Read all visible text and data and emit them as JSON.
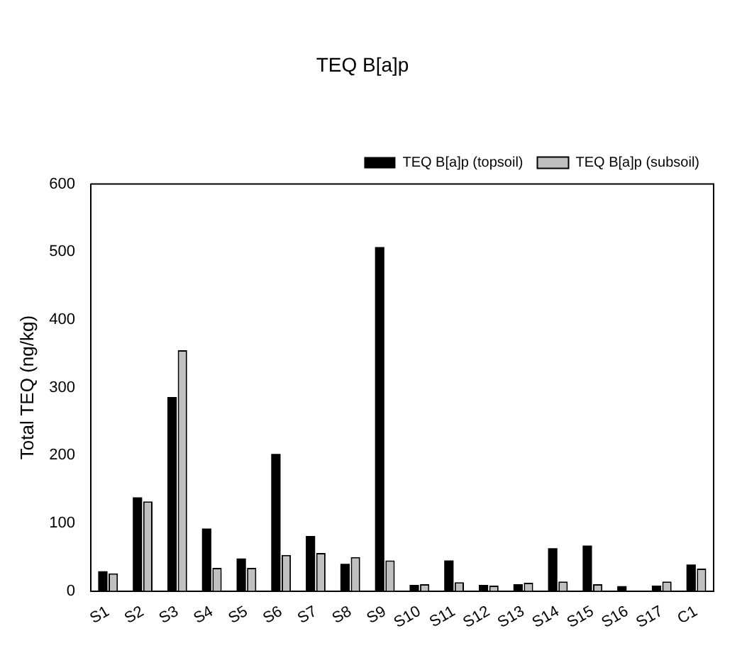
{
  "chart_data": {
    "type": "bar",
    "title": "TEQ B[a]p",
    "ylabel": "Total TEQ (ng/kg)",
    "categories": [
      "S1",
      "S2",
      "S3",
      "S4",
      "S5",
      "S6",
      "S7",
      "S8",
      "S9",
      "S10",
      "S11",
      "S12",
      "S13",
      "S14",
      "S15",
      "S16",
      "S17",
      "C1"
    ],
    "series": [
      {
        "name": "TEQ B[a]p (topsoil)",
        "color": "#000000",
        "values": [
          29,
          138,
          286,
          92,
          48,
          202,
          81,
          40,
          507,
          9,
          45,
          9,
          10,
          63,
          67,
          7,
          8,
          39
        ]
      },
      {
        "name": "TEQ B[a]p (subsoil)",
        "color": "#c0c0c0",
        "values": [
          26,
          132,
          355,
          34,
          34,
          53,
          56,
          50,
          45,
          10,
          13,
          8,
          12,
          14,
          10,
          null,
          14,
          33
        ]
      }
    ],
    "ylim": [
      0,
      600
    ],
    "yticks": [
      0,
      100,
      200,
      300,
      400,
      500,
      600
    ],
    "grid": false,
    "legend": "top right"
  }
}
